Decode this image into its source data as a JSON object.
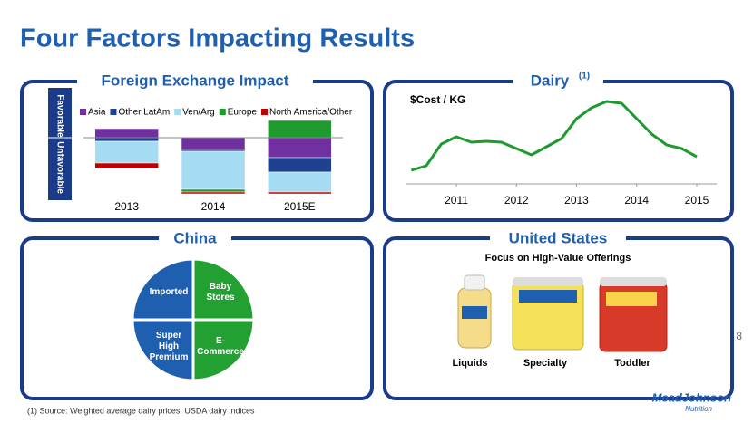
{
  "title": "Four Factors Impacting Results",
  "page_number": "8",
  "footnote": "(1) Source:  Weighted average dairy prices, USDA dairy indices",
  "logo": "MeadJohnson",
  "logo_sub": "Nutrition",
  "panels": {
    "fx": {
      "title": "Foreign Exchange Impact",
      "favorable": "Favorable",
      "unfavorable": "Unfavorable"
    },
    "dairy": {
      "title": "Dairy",
      "superscript": "(1)"
    },
    "china": {
      "title": "China",
      "segments": [
        "Imported",
        "Baby Stores",
        "Super High Premium",
        "E-Commerce"
      ]
    },
    "us": {
      "title": "United States",
      "subtitle": "Focus on High-Value Offerings",
      "products": [
        "Liquids",
        "Specialty",
        "Toddler"
      ]
    }
  },
  "chart_data": [
    {
      "type": "bar",
      "stacked": true,
      "legend": "top",
      "grid": false,
      "categories": [
        "2013",
        "2014",
        "2015E"
      ],
      "ylim": [
        -65,
        35
      ],
      "series": [
        {
          "name": "Asia",
          "color": "#7030a0",
          "values": [
            10,
            -13,
            -22
          ]
        },
        {
          "name": "Other LatAm",
          "color": "#1f3f8f",
          "values": [
            -4,
            -2,
            -16
          ]
        },
        {
          "name": "Ven/Arg",
          "color": "#a6dcf2",
          "values": [
            -24,
            -42,
            -22
          ]
        },
        {
          "name": "Europe",
          "color": "#1e9a2e",
          "values": [
            0,
            -3,
            19
          ]
        },
        {
          "name": "North America/Other",
          "color": "#c00000",
          "values": [
            -6,
            -2,
            -2
          ]
        }
      ]
    },
    {
      "type": "line",
      "y_label": "$Cost / KG",
      "color": "#1e9a2e",
      "grid": false,
      "x": [
        2010.25,
        2010.5,
        2010.75,
        2011,
        2011.25,
        2011.5,
        2011.75,
        2012,
        2012.25,
        2012.5,
        2012.75,
        2013,
        2013.25,
        2013.5,
        2013.75,
        2014,
        2014.25,
        2014.5,
        2014.75,
        2015
      ],
      "values": [
        32,
        37,
        61,
        69,
        63,
        64,
        63,
        56,
        49,
        58,
        67,
        89,
        101,
        108,
        106,
        89,
        72,
        60,
        56,
        47
      ],
      "xlim": [
        2010,
        2015.4
      ],
      "ylim": [
        20,
        120
      ],
      "xticks": [
        2011,
        2012,
        2013,
        2014,
        2015
      ]
    }
  ]
}
